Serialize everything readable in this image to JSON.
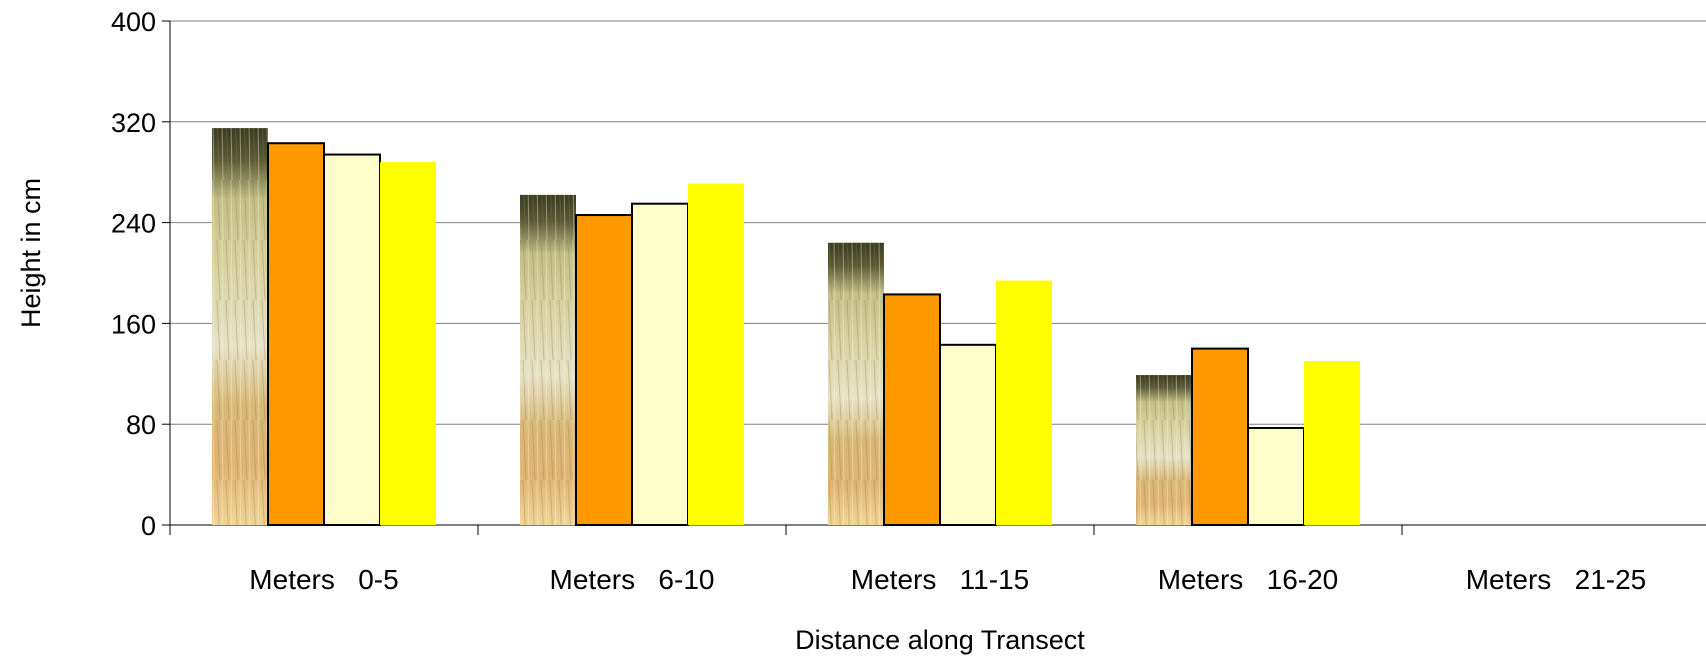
{
  "chart_data": {
    "type": "bar",
    "title": "",
    "xlabel": "Distance along Transect",
    "ylabel": "Height in cm",
    "categories": [
      "Meters   0-5",
      "Meters   6-10",
      "Meters   11-15",
      "Meters   16-20",
      "Meters   21-25"
    ],
    "ylim": [
      0,
      400
    ],
    "yticks": [
      "0",
      "80",
      "160",
      "240",
      "320",
      "400"
    ],
    "grid": true,
    "legend": "none",
    "series": [
      {
        "fill": "photo-grass",
        "values": [
          315,
          262,
          224,
          119,
          0
        ]
      },
      {
        "fill": "#FF9900",
        "values": [
          303,
          246,
          183,
          140,
          0
        ]
      },
      {
        "fill": "#FFFFCC",
        "values": [
          294,
          255,
          143,
          77,
          0
        ]
      },
      {
        "fill": "#FFFF00",
        "values": [
          288,
          271,
          194,
          130,
          0
        ]
      }
    ]
  }
}
